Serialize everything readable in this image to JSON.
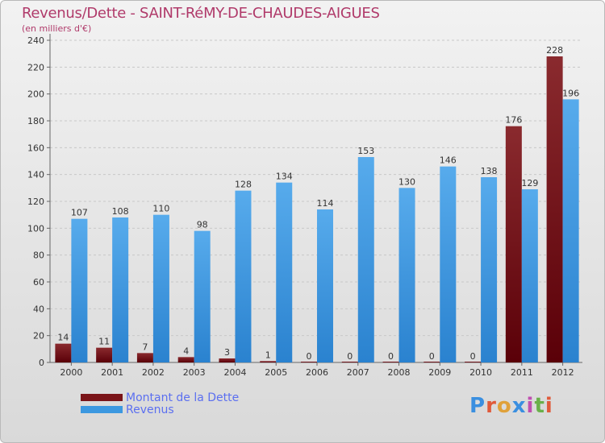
{
  "header": {
    "title": "Revenus/Dette - SAINT-RéMY-DE-CHAUDES-AIGUES",
    "subtitle": "(en milliers d'€)"
  },
  "legend": {
    "debt_label": "Montant de la Dette",
    "revenue_label": "Revenus"
  },
  "logo": {
    "letters": [
      "P",
      "r",
      "o",
      "x",
      "i",
      "t",
      "i"
    ]
  },
  "colors": {
    "debt": "#7a1418",
    "revenue": "#3c98e0",
    "title": "#b03a6a",
    "legend_text": "#5b6ff0"
  },
  "chart_data": {
    "type": "bar",
    "title": "Revenus/Dette - SAINT-RéMY-DE-CHAUDES-AIGUES",
    "subtitle": "(en milliers d'€)",
    "categories": [
      "2000",
      "2001",
      "2002",
      "2003",
      "2004",
      "2005",
      "2006",
      "2007",
      "2008",
      "2009",
      "2010",
      "2011",
      "2012"
    ],
    "series": [
      {
        "name": "Montant de la Dette",
        "values": [
          14,
          11,
          7,
          4,
          3,
          1,
          0,
          0,
          0,
          0,
          0,
          176,
          228
        ]
      },
      {
        "name": "Revenus",
        "values": [
          107,
          108,
          110,
          98,
          128,
          134,
          114,
          153,
          130,
          146,
          138,
          129,
          196
        ]
      }
    ],
    "ylim": [
      0,
      240
    ],
    "yticks": [
      0,
      20,
      40,
      60,
      80,
      100,
      120,
      140,
      160,
      180,
      200,
      220,
      240
    ],
    "grid": true,
    "legend_position": "bottom-left"
  }
}
